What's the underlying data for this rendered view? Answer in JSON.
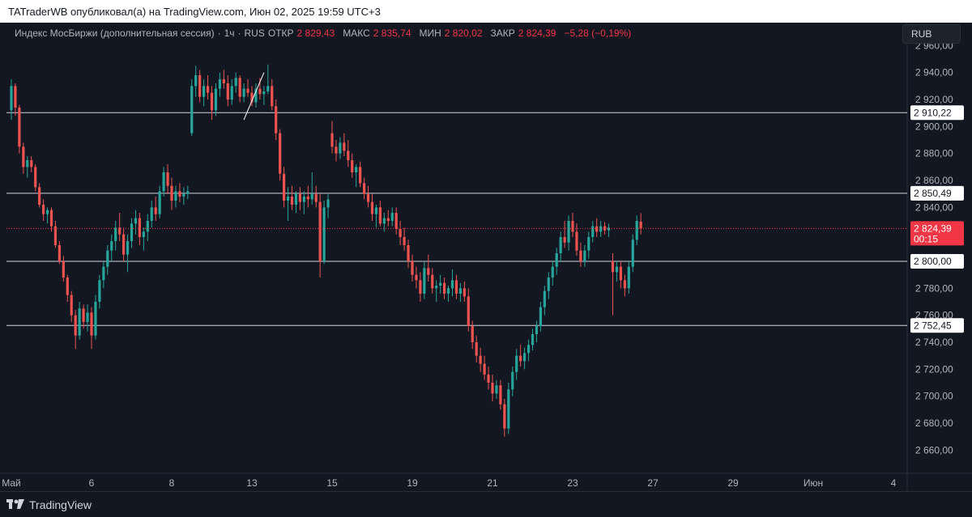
{
  "header": {
    "published_text": "TATraderWB опубликовал(а) на TradingView.com, Июн 02, 2025 19:59 UTC+3"
  },
  "legend": {
    "symbol": "Индекс МосБиржи (дополнительная сессия)",
    "interval": "1ч",
    "exchange": "RUS",
    "open_label": "ОТКР",
    "open_value": "2 829,43",
    "high_label": "МАКС",
    "high_value": "2 835,74",
    "low_label": "МИН",
    "low_value": "2 820,02",
    "close_label": "ЗАКР",
    "close_value": "2 824,39",
    "change": "−5,28 (−0,19%)"
  },
  "currency_button": "RUB",
  "footer": {
    "brand": "TradingView"
  },
  "colors": {
    "background": "#131722",
    "up": "#26a69a",
    "down": "#ef5350",
    "price_line": "#f23645",
    "axis_text": "#b2b5be",
    "level_line": "#d1d4dc"
  },
  "chart_data": {
    "type": "candlestick",
    "y_ticks": [
      "2 960,00",
      "2 940,00",
      "2 920,00",
      "2 900,00",
      "2 880,00",
      "2 860,00",
      "2 840,00",
      "2 820,00",
      "2 800,00",
      "2 780,00",
      "2 760,00",
      "2 740,00",
      "2 720,00",
      "2 700,00",
      "2 680,00",
      "2 660,00"
    ],
    "y_tick_values": [
      2960,
      2940,
      2920,
      2900,
      2880,
      2860,
      2840,
      2820,
      2800,
      2780,
      2760,
      2740,
      2720,
      2700,
      2680,
      2660
    ],
    "ylim": [
      2650,
      2965
    ],
    "x_ticks": [
      "Май",
      "6",
      "8",
      "13",
      "15",
      "19",
      "21",
      "23",
      "27",
      "29",
      "Июн",
      "4"
    ],
    "x_tick_bars": [
      0,
      20,
      40,
      60,
      80,
      100,
      120,
      140,
      160,
      180,
      200,
      220
    ],
    "horizontal_levels": [
      {
        "label": "2 910,22",
        "value": 2910.22
      },
      {
        "label": "2 850,49",
        "value": 2850.49
      },
      {
        "label": "2 800,00",
        "value": 2800.0
      },
      {
        "label": "2 752,45",
        "value": 2752.45
      }
    ],
    "last_price": {
      "label": "2 824,39",
      "value": 2824.39,
      "countdown": "00:15"
    },
    "trendline": {
      "from": [
        58,
        2905
      ],
      "to": [
        63,
        2940
      ]
    },
    "candles": [
      [
        2912,
        2935,
        2905,
        2930
      ],
      [
        2930,
        2932,
        2908,
        2914
      ],
      [
        2914,
        2916,
        2880,
        2885
      ],
      [
        2885,
        2888,
        2865,
        2870
      ],
      [
        2870,
        2878,
        2862,
        2875
      ],
      [
        2875,
        2878,
        2866,
        2870
      ],
      [
        2870,
        2872,
        2852,
        2855
      ],
      [
        2855,
        2858,
        2840,
        2842
      ],
      [
        2842,
        2846,
        2830,
        2835
      ],
      [
        2835,
        2840,
        2828,
        2838
      ],
      [
        2838,
        2840,
        2822,
        2826
      ],
      [
        2826,
        2830,
        2810,
        2812
      ],
      [
        2812,
        2815,
        2798,
        2800
      ],
      [
        2800,
        2804,
        2785,
        2788
      ],
      [
        2788,
        2790,
        2770,
        2775
      ],
      [
        2775,
        2778,
        2755,
        2760
      ],
      [
        2760,
        2764,
        2735,
        2745
      ],
      [
        2745,
        2770,
        2742,
        2765
      ],
      [
        2765,
        2768,
        2750,
        2755
      ],
      [
        2755,
        2768,
        2748,
        2762
      ],
      [
        2762,
        2766,
        2735,
        2745
      ],
      [
        2745,
        2775,
        2742,
        2770
      ],
      [
        2770,
        2790,
        2765,
        2786
      ],
      [
        2786,
        2800,
        2780,
        2796
      ],
      [
        2796,
        2812,
        2790,
        2808
      ],
      [
        2808,
        2820,
        2800,
        2815
      ],
      [
        2815,
        2830,
        2808,
        2825
      ],
      [
        2825,
        2836,
        2815,
        2820
      ],
      [
        2820,
        2825,
        2800,
        2805
      ],
      [
        2805,
        2820,
        2792,
        2815
      ],
      [
        2815,
        2832,
        2810,
        2828
      ],
      [
        2828,
        2838,
        2820,
        2832
      ],
      [
        2832,
        2836,
        2812,
        2818
      ],
      [
        2818,
        2825,
        2808,
        2822
      ],
      [
        2822,
        2835,
        2815,
        2830
      ],
      [
        2830,
        2845,
        2825,
        2840
      ],
      [
        2840,
        2848,
        2830,
        2835
      ],
      [
        2835,
        2856,
        2832,
        2852
      ],
      [
        2852,
        2870,
        2848,
        2866
      ],
      [
        2866,
        2872,
        2850,
        2856
      ],
      [
        2856,
        2862,
        2838,
        2845
      ],
      [
        2845,
        2856,
        2840,
        2852
      ],
      [
        2852,
        2858,
        2844,
        2848
      ],
      [
        2848,
        2855,
        2842,
        2850
      ],
      [
        2850,
        2856,
        2846,
        2852
      ],
      [
        2895,
        2935,
        2893,
        2930
      ],
      [
        2930,
        2945,
        2922,
        2938
      ],
      [
        2938,
        2942,
        2918,
        2922
      ],
      [
        2922,
        2935,
        2915,
        2930
      ],
      [
        2930,
        2938,
        2920,
        2925
      ],
      [
        2925,
        2930,
        2905,
        2912
      ],
      [
        2912,
        2932,
        2908,
        2928
      ],
      [
        2928,
        2940,
        2922,
        2935
      ],
      [
        2935,
        2942,
        2928,
        2932
      ],
      [
        2932,
        2938,
        2915,
        2920
      ],
      [
        2920,
        2935,
        2916,
        2930
      ],
      [
        2930,
        2940,
        2925,
        2936
      ],
      [
        2936,
        2938,
        2918,
        2922
      ],
      [
        2922,
        2932,
        2918,
        2928
      ],
      [
        2928,
        2935,
        2922,
        2925
      ],
      [
        2925,
        2930,
        2915,
        2918
      ],
      [
        2918,
        2932,
        2914,
        2928
      ],
      [
        2928,
        2936,
        2920,
        2924
      ],
      [
        2924,
        2930,
        2916,
        2926
      ],
      [
        2926,
        2946,
        2924,
        2930
      ],
      [
        2930,
        2935,
        2912,
        2915
      ],
      [
        2915,
        2920,
        2890,
        2895
      ],
      [
        2895,
        2898,
        2860,
        2865
      ],
      [
        2865,
        2870,
        2840,
        2845
      ],
      [
        2845,
        2855,
        2830,
        2848
      ],
      [
        2848,
        2856,
        2838,
        2842
      ],
      [
        2842,
        2852,
        2836,
        2850
      ],
      [
        2850,
        2855,
        2838,
        2844
      ],
      [
        2844,
        2852,
        2835,
        2848
      ],
      [
        2848,
        2856,
        2840,
        2846
      ],
      [
        2846,
        2866,
        2842,
        2850
      ],
      [
        2850,
        2856,
        2840,
        2844
      ],
      [
        2844,
        2850,
        2788,
        2800
      ],
      [
        2800,
        2845,
        2798,
        2840
      ],
      [
        2840,
        2850,
        2832,
        2846
      ],
      [
        2895,
        2904,
        2880,
        2885
      ],
      [
        2885,
        2890,
        2874,
        2880
      ],
      [
        2880,
        2892,
        2876,
        2888
      ],
      [
        2888,
        2895,
        2878,
        2882
      ],
      [
        2882,
        2890,
        2870,
        2875
      ],
      [
        2875,
        2880,
        2862,
        2866
      ],
      [
        2866,
        2872,
        2855,
        2870
      ],
      [
        2870,
        2874,
        2855,
        2858
      ],
      [
        2858,
        2862,
        2846,
        2850
      ],
      [
        2850,
        2856,
        2840,
        2844
      ],
      [
        2844,
        2850,
        2830,
        2835
      ],
      [
        2835,
        2842,
        2825,
        2840
      ],
      [
        2840,
        2845,
        2826,
        2828
      ],
      [
        2828,
        2836,
        2822,
        2832
      ],
      [
        2832,
        2838,
        2826,
        2830
      ],
      [
        2830,
        2840,
        2826,
        2836
      ],
      [
        2836,
        2840,
        2820,
        2824
      ],
      [
        2824,
        2830,
        2812,
        2818
      ],
      [
        2818,
        2825,
        2808,
        2812
      ],
      [
        2812,
        2816,
        2795,
        2800
      ],
      [
        2800,
        2805,
        2785,
        2790
      ],
      [
        2790,
        2796,
        2780,
        2786
      ],
      [
        2786,
        2792,
        2770,
        2776
      ],
      [
        2776,
        2800,
        2772,
        2795
      ],
      [
        2795,
        2805,
        2785,
        2790
      ],
      [
        2790,
        2795,
        2776,
        2780
      ],
      [
        2780,
        2786,
        2770,
        2782
      ],
      [
        2782,
        2790,
        2776,
        2784
      ],
      [
        2784,
        2788,
        2772,
        2776
      ],
      [
        2776,
        2782,
        2770,
        2780
      ],
      [
        2780,
        2794,
        2774,
        2786
      ],
      [
        2786,
        2790,
        2772,
        2776
      ],
      [
        2776,
        2784,
        2770,
        2780
      ],
      [
        2780,
        2785,
        2770,
        2774
      ],
      [
        2774,
        2780,
        2748,
        2752
      ],
      [
        2752,
        2756,
        2735,
        2740
      ],
      [
        2740,
        2745,
        2725,
        2730
      ],
      [
        2730,
        2736,
        2718,
        2724
      ],
      [
        2724,
        2730,
        2712,
        2716
      ],
      [
        2716,
        2722,
        2705,
        2710
      ],
      [
        2710,
        2716,
        2696,
        2702
      ],
      [
        2702,
        2712,
        2698,
        2708
      ],
      [
        2708,
        2712,
        2690,
        2694
      ],
      [
        2694,
        2698,
        2670,
        2676
      ],
      [
        2676,
        2710,
        2672,
        2705
      ],
      [
        2705,
        2722,
        2700,
        2718
      ],
      [
        2718,
        2735,
        2712,
        2730
      ],
      [
        2730,
        2738,
        2722,
        2726
      ],
      [
        2726,
        2736,
        2720,
        2732
      ],
      [
        2732,
        2742,
        2726,
        2738
      ],
      [
        2738,
        2750,
        2734,
        2746
      ],
      [
        2746,
        2756,
        2740,
        2752
      ],
      [
        2752,
        2770,
        2748,
        2766
      ],
      [
        2766,
        2782,
        2760,
        2778
      ],
      [
        2778,
        2792,
        2772,
        2788
      ],
      [
        2788,
        2800,
        2782,
        2796
      ],
      [
        2796,
        2810,
        2790,
        2806
      ],
      [
        2806,
        2822,
        2800,
        2818
      ],
      [
        2818,
        2830,
        2810,
        2814
      ],
      [
        2814,
        2834,
        2808,
        2830
      ],
      [
        2830,
        2836,
        2818,
        2822
      ],
      [
        2822,
        2828,
        2804,
        2808
      ],
      [
        2808,
        2814,
        2796,
        2800
      ],
      [
        2800,
        2812,
        2796,
        2808
      ],
      [
        2808,
        2822,
        2802,
        2818
      ],
      [
        2818,
        2830,
        2814,
        2826
      ],
      [
        2826,
        2832,
        2818,
        2822
      ],
      [
        2822,
        2830,
        2818,
        2826
      ],
      [
        2826,
        2829,
        2820,
        2823
      ],
      [
        2823,
        2828,
        2818,
        2825
      ],
      [
        2800,
        2806,
        2760,
        2792
      ],
      [
        2792,
        2800,
        2785,
        2796
      ],
      [
        2796,
        2800,
        2780,
        2786
      ],
      [
        2786,
        2790,
        2774,
        2780
      ],
      [
        2780,
        2800,
        2776,
        2796
      ],
      [
        2796,
        2820,
        2792,
        2816
      ],
      [
        2816,
        2834,
        2812,
        2830
      ],
      [
        2829.43,
        2835.74,
        2820.02,
        2824.39
      ]
    ]
  }
}
